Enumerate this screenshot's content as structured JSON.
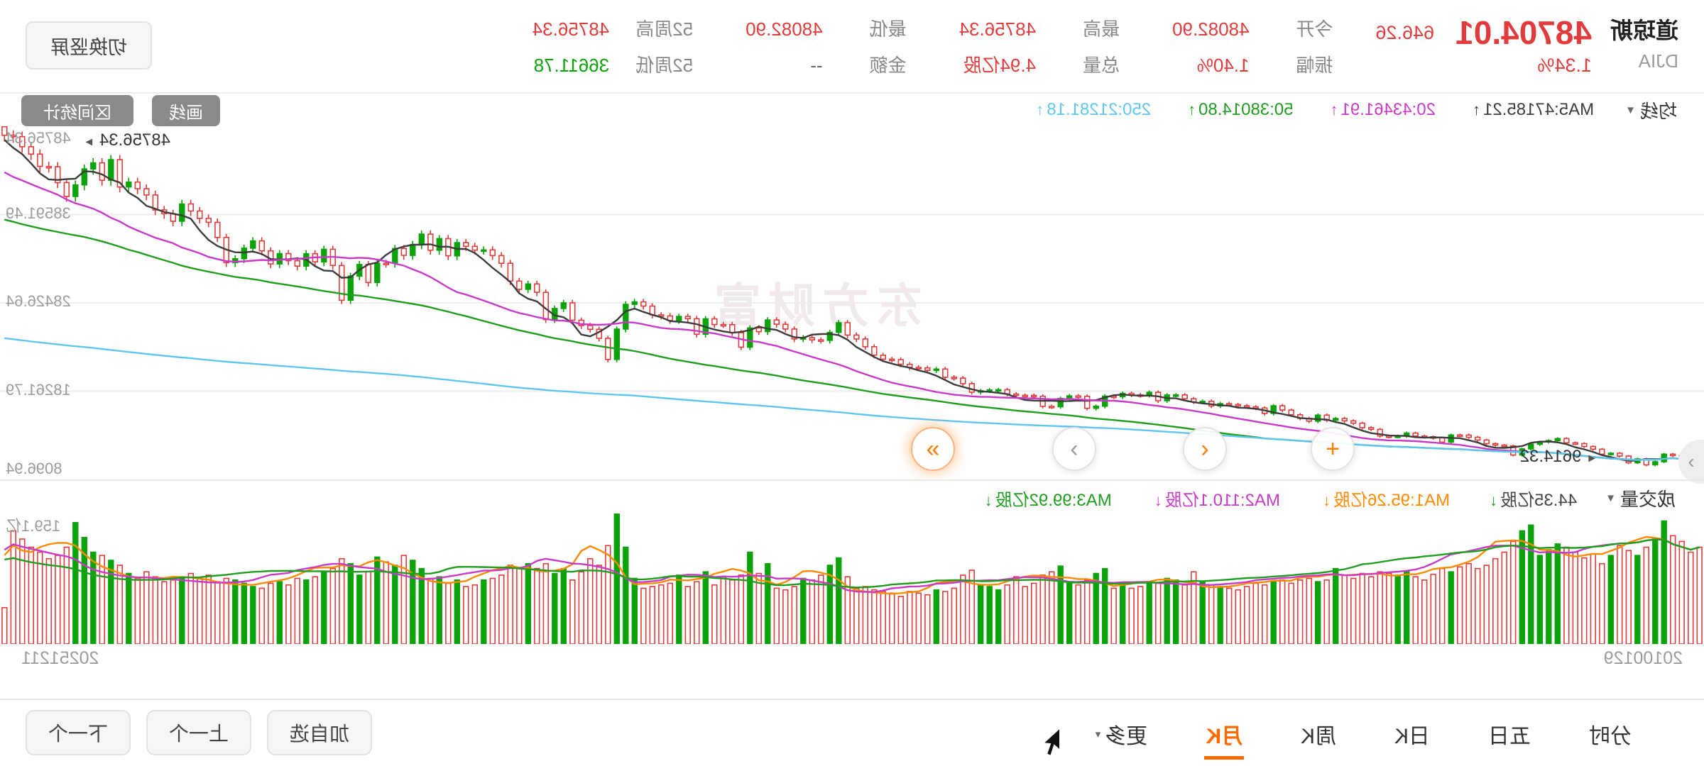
{
  "ui": {
    "caret_down": "▼",
    "caret_small": "▾"
  },
  "topbar": {
    "quote": {
      "name": "道琼斯",
      "code": "DJIA",
      "price": "48704.01",
      "change": "646.26",
      "change_pct": "1.34%"
    },
    "stat_groups": [
      {
        "top": {
          "label": "今开",
          "value": "48082.90"
        },
        "bottom": {
          "label": "振幅",
          "value": "1.40%"
        }
      },
      {
        "top": {
          "label": "最高",
          "value": "48756.34"
        },
        "bottom": {
          "label": "总量",
          "value": "4.94亿股"
        }
      },
      {
        "top": {
          "label": "最低",
          "value": "48082.90"
        },
        "bottom": {
          "label": "金额",
          "value": "--"
        }
      },
      {
        "top": {
          "label": "52周高",
          "value": "48756.34"
        },
        "bottom": {
          "label": "52周低",
          "value": "36611.78"
        }
      }
    ],
    "portrait_button": "切换竖屏"
  },
  "kline_header": {
    "selector": "均线",
    "ma_items": [
      {
        "text": "MA5:47185.21",
        "arrow": "↑"
      },
      {
        "text": "20:43461.91",
        "arrow": "↑"
      },
      {
        "text": "50:38014.80",
        "arrow": "↑"
      },
      {
        "text": "250:21281.18",
        "arrow": "↑"
      }
    ],
    "draw_button": "画线",
    "range_stat_button": "区间统计"
  },
  "chart": {
    "watermark": "东方财富",
    "axis_labels": [
      "48756.34",
      "38591.49",
      "28426.64",
      "18261.79",
      "8096.94"
    ],
    "high_marker": {
      "value": "48756.34",
      "arrow": "►"
    },
    "low_marker": {
      "value": "9614.32",
      "arrow": "◄"
    },
    "nav_buttons": [
      {
        "glyph": "+"
      },
      {
        "glyph": "‹"
      },
      {
        "glyph": "›"
      },
      {
        "glyph": "»"
      }
    ],
    "edge_tab_glyph": "›"
  },
  "volume_header": {
    "selector": "成交量",
    "current": "44.35亿股",
    "current_arrow": "↓",
    "ma_items": [
      {
        "text": "MA1:95.26亿股",
        "arrow": "↓"
      },
      {
        "text": "MA2:110.1亿股",
        "arrow": "↓"
      },
      {
        "text": "MA3:99.92亿股",
        "arrow": "↓"
      }
    ],
    "axis_label": "159.1亿"
  },
  "dates": {
    "start": "20100129",
    "end": "20251211"
  },
  "bottom_bar": {
    "tabs": [
      "分时",
      "五日",
      "日K",
      "周K",
      "月K",
      "更多"
    ],
    "active_tab": "月K",
    "buttons": [
      "加自选",
      "上一个",
      "下一个"
    ]
  },
  "colors": {
    "up": "#e23b3b",
    "down": "#0ca30a",
    "ma5": "#3c3c3c",
    "ma20": "#c93ac9",
    "ma50": "#1f9d1f",
    "ma250": "#5fc6ee",
    "vol_ma1": "#ff8a00",
    "vol_ma2": "#c93ac9",
    "vol_ma3": "#1f9d1f",
    "accent": "#ff6a00"
  },
  "chart_data": {
    "type": "candlestick",
    "title": "道琼斯 DJIA 月K 20100129-20251211",
    "price_axis": {
      "max": 48756.34,
      "min": 8096.94,
      "labels": [
        48756.34,
        38591.49,
        28426.64,
        18261.79,
        8096.94
      ]
    },
    "volume_axis": {
      "max": 159.1,
      "label": "159.1亿"
    },
    "x_range": [
      "20100129",
      "20251211"
    ],
    "price_ma_periods": [
      5,
      20,
      50,
      250
    ],
    "volume_ma_periods": [
      5,
      10,
      20
    ],
    "closes": [
      10067,
      10325,
      10857,
      11009,
      10137,
      9774,
      10466,
      10015,
      10788,
      11118,
      11006,
      11578,
      11892,
      12226,
      12320,
      12811,
      12570,
      12414,
      12143,
      11614,
      10913,
      11955,
      12046,
      12218,
      12633,
      12952,
      13212,
      13214,
      12393,
      12880,
      13009,
      13091,
      13437,
      13096,
      13026,
      13104,
      13861,
      14054,
      14579,
      14840,
      15116,
      14910,
      15500,
      14810,
      15130,
      15546,
      16086,
      16577,
      15699,
      16322,
      16458,
      16581,
      16717,
      16827,
      16563,
      17098,
      17043,
      17391,
      17828,
      17823,
      17165,
      18133,
      17776,
      17841,
      18011,
      17620,
      17690,
      16528,
      16285,
      17664,
      17720,
      17425,
      16466,
      16517,
      17685,
      17774,
      17787,
      17930,
      18432,
      18401,
      18308,
      18142,
      19124,
      19763,
      19864,
      20812,
      20663,
      20941,
      21009,
      21350,
      21891,
      21948,
      22405,
      23377,
      24272,
      24719,
      26149,
      25029,
      24103,
      24163,
      24416,
      24271,
      25415,
      25965,
      26458,
      25116,
      25538,
      23327,
      25000,
      25916,
      25929,
      26593,
      24815,
      26600,
      26864,
      26403,
      26917,
      27046,
      28051,
      28538,
      28256,
      25409,
      21917,
      24346,
      25383,
      25813,
      26428,
      28430,
      27782,
      26502,
      29639,
      30606,
      29983,
      30932,
      32982,
      33875,
      34529,
      34503,
      34935,
      35361,
      33844,
      35820,
      34484,
      36338,
      35132,
      33893,
      34678,
      32977,
      32990,
      30775,
      32845,
      31510,
      28726,
      32733,
      34590,
      33147,
      34086,
      32657,
      33274,
      34098,
      32908,
      34408,
      35560,
      34722,
      33508,
      33053,
      35951,
      37690,
      38150,
      38996,
      39807,
      37816,
      38686,
      39119,
      40843,
      41563,
      42330,
      41763,
      44911,
      42544,
      44545,
      43841,
      42002,
      40669,
      42270,
      44095,
      44131,
      45545,
      46398,
      47563,
      47716,
      48704.01
    ],
    "volumes": [
      118,
      112,
      125,
      132,
      150,
      128,
      118,
      108,
      114,
      120,
      108,
      98,
      110,
      105,
      112,
      118,
      122,
      115,
      108,
      145,
      138,
      125,
      112,
      104,
      96,
      92,
      98,
      94,
      88,
      92,
      85,
      78,
      82,
      88,
      84,
      86,
      88,
      82,
      86,
      80,
      84,
      92,
      78,
      76,
      80,
      78,
      74,
      78,
      76,
      72,
      74,
      70,
      66,
      68,
      70,
      72,
      76,
      88,
      72,
      78,
      80,
      74,
      76,
      70,
      68,
      72,
      68,
      92,
      86,
      78,
      72,
      76,
      95,
      88,
      84,
      74,
      70,
      82,
      72,
      66,
      70,
      72,
      90,
      84,
      68,
      64,
      66,
      60,
      62,
      64,
      58,
      62,
      64,
      66,
      70,
      68,
      82,
      105,
      96,
      84,
      78,
      80,
      70,
      66,
      68,
      98,
      86,
      112,
      84,
      78,
      82,
      72,
      88,
      76,
      70,
      84,
      74,
      72,
      70,
      68,
      80,
      118,
      159.1,
      120,
      96,
      104,
      88,
      78,
      92,
      86,
      98,
      92,
      98,
      92,
      96,
      84,
      80,
      78,
      72,
      70,
      78,
      74,
      82,
      80,
      92,
      102,
      108,
      96,
      100,
      106,
      88,
      84,
      98,
      104,
      92,
      88,
      82,
      78,
      80,
      72,
      76,
      74,
      68,
      70,
      74,
      78,
      80,
      76,
      84,
      80,
      86,
      82,
      78,
      76,
      82,
      88,
      80,
      86,
      96,
      102,
      108,
      112,
      130,
      148,
      118,
      108,
      104,
      112,
      118,
      128,
      138,
      44.35
    ]
  }
}
